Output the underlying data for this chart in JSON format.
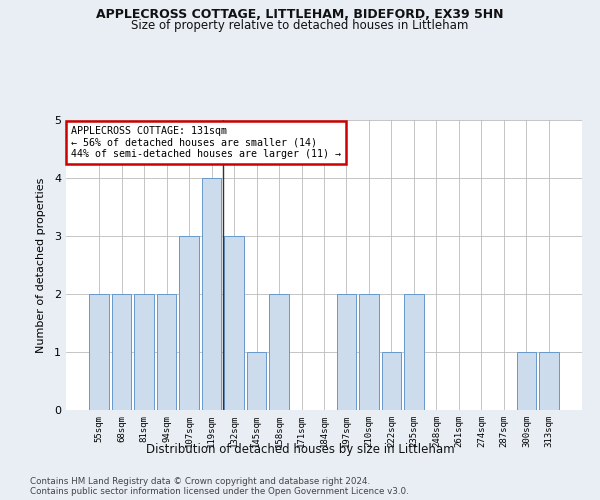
{
  "title1": "APPLECROSS COTTAGE, LITTLEHAM, BIDEFORD, EX39 5HN",
  "title2": "Size of property relative to detached houses in Littleham",
  "xlabel": "Distribution of detached houses by size in Littleham",
  "ylabel": "Number of detached properties",
  "categories": [
    "55sqm",
    "68sqm",
    "81sqm",
    "94sqm",
    "107sqm",
    "119sqm",
    "132sqm",
    "145sqm",
    "158sqm",
    "171sqm",
    "184sqm",
    "197sqm",
    "210sqm",
    "222sqm",
    "235sqm",
    "248sqm",
    "261sqm",
    "274sqm",
    "287sqm",
    "300sqm",
    "313sqm"
  ],
  "values": [
    2,
    2,
    2,
    2,
    3,
    4,
    3,
    1,
    2,
    0,
    0,
    2,
    2,
    1,
    2,
    0,
    0,
    0,
    0,
    1,
    1
  ],
  "bar_color": "#ccdcec",
  "bar_edge_color": "#6699cc",
  "highlight_index": 6,
  "highlight_line_color": "#333333",
  "annotation_line1": "APPLECROSS COTTAGE: 131sqm",
  "annotation_line2": "← 56% of detached houses are smaller (14)",
  "annotation_line3": "44% of semi-detached houses are larger (11) →",
  "annotation_box_color": "white",
  "annotation_box_edge": "#cc0000",
  "ylim": [
    0,
    5
  ],
  "yticks": [
    0,
    1,
    2,
    3,
    4,
    5
  ],
  "footer1": "Contains HM Land Registry data © Crown copyright and database right 2024.",
  "footer2": "Contains public sector information licensed under the Open Government Licence v3.0.",
  "bg_color": "#e8eef4",
  "plot_bg_color": "#ffffff",
  "title1_fontsize": 9,
  "title2_fontsize": 8.5,
  "bar_width": 0.85
}
